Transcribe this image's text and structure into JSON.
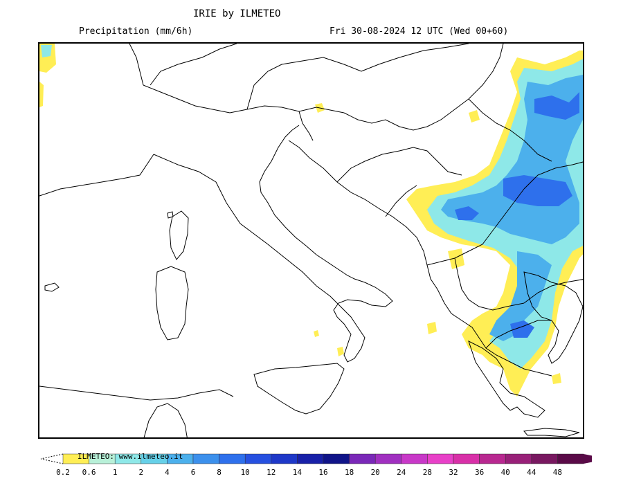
{
  "header": {
    "title": "IRIE by ILMETEO",
    "variable": "Precipitation (mm/6h)",
    "run": "Fri 30-08-2024 12 UTC (Wed 00+60)"
  },
  "legend": {
    "watermark": "ILMETEO: www.ilmeteo.it",
    "levels": [
      "0.2",
      "0.6",
      "1",
      "2",
      "4",
      "6",
      "8",
      "10",
      "12",
      "14",
      "16",
      "18",
      "20",
      "24",
      "28",
      "32",
      "36",
      "40",
      "44",
      "48"
    ],
    "colors": [
      "#ffee55",
      "#b8f0d8",
      "#8ee8e8",
      "#66d0e8",
      "#4cb0ec",
      "#3c90ec",
      "#2e70ec",
      "#2650e0",
      "#1e38c8",
      "#1820a8",
      "#101488",
      "#7a28b8",
      "#a030c0",
      "#c838c8",
      "#e840c8",
      "#d830a8",
      "#b82890",
      "#982078",
      "#781860",
      "#5a0a48"
    ]
  },
  "map": {
    "region": "Italy and Balkans",
    "overlay_palette": {
      "light": "#ffee55",
      "cyan": "#8ee8e8",
      "mid": "#4cb0ec",
      "deep": "#2e70ec"
    }
  }
}
